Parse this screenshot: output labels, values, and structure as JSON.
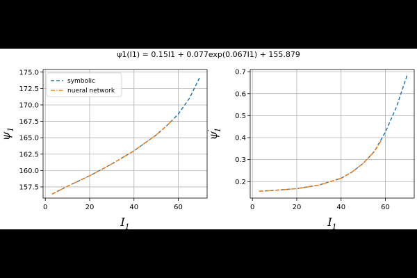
{
  "figure": {
    "suptitle": "ψ1(I1) = 0.15I1 + 0.077exp(0.067I1) + 155.879"
  },
  "chart_data": [
    {
      "type": "line",
      "xlabel": "I1",
      "ylabel": "ψ1",
      "xlim": [
        -1,
        73
      ],
      "ylim": [
        155.8,
        175.4
      ],
      "xticks": [
        0,
        20,
        40,
        60
      ],
      "yticks": [
        157.5,
        160.0,
        162.5,
        165.0,
        167.5,
        170.0,
        172.5,
        175.0
      ],
      "ytick_labels": [
        "157.5",
        "160.0",
        "162.5",
        "165.0",
        "167.5",
        "170.0",
        "172.5",
        "175.0"
      ],
      "grid": true,
      "legend_placement": "top-left",
      "series": [
        {
          "name": "symbolic",
          "style": "dashed",
          "color": "#1f77b4",
          "x": [
            3,
            10,
            20,
            30,
            40,
            50,
            55,
            60,
            65,
            70
          ],
          "y": [
            156.4,
            157.6,
            159.2,
            161.0,
            163.0,
            165.4,
            166.9,
            168.6,
            171.0,
            174.4
          ]
        },
        {
          "name": "nueral network",
          "style": "dashdot",
          "color": "#ff7f0e",
          "x": [
            3,
            10,
            20,
            30,
            40,
            50,
            55,
            58
          ],
          "y": [
            156.4,
            157.6,
            159.2,
            161.0,
            163.0,
            165.4,
            166.9,
            167.9
          ]
        }
      ]
    },
    {
      "type": "line",
      "xlabel": "I1",
      "ylabel": "ψ'1",
      "xlim": [
        -1,
        73
      ],
      "ylim": [
        0.125,
        0.71
      ],
      "xticks": [
        0,
        20,
        40,
        60
      ],
      "yticks": [
        0.2,
        0.3,
        0.4,
        0.5,
        0.6,
        0.7
      ],
      "ytick_labels": [
        "0.2",
        "0.3",
        "0.4",
        "0.5",
        "0.6",
        "0.7"
      ],
      "grid": true,
      "series": [
        {
          "name": "symbolic",
          "style": "dashed",
          "color": "#1f77b4",
          "x": [
            3,
            10,
            20,
            30,
            40,
            45,
            50,
            55,
            60,
            65,
            70
          ],
          "y": [
            0.156,
            0.16,
            0.168,
            0.184,
            0.215,
            0.244,
            0.283,
            0.337,
            0.425,
            0.54,
            0.69
          ]
        },
        {
          "name": "nueral network",
          "style": "dashdot",
          "color": "#ff7f0e",
          "x": [
            3,
            10,
            20,
            30,
            40,
            45,
            50,
            55,
            58
          ],
          "y": [
            0.156,
            0.16,
            0.168,
            0.184,
            0.215,
            0.244,
            0.283,
            0.337,
            0.385
          ]
        }
      ]
    }
  ]
}
